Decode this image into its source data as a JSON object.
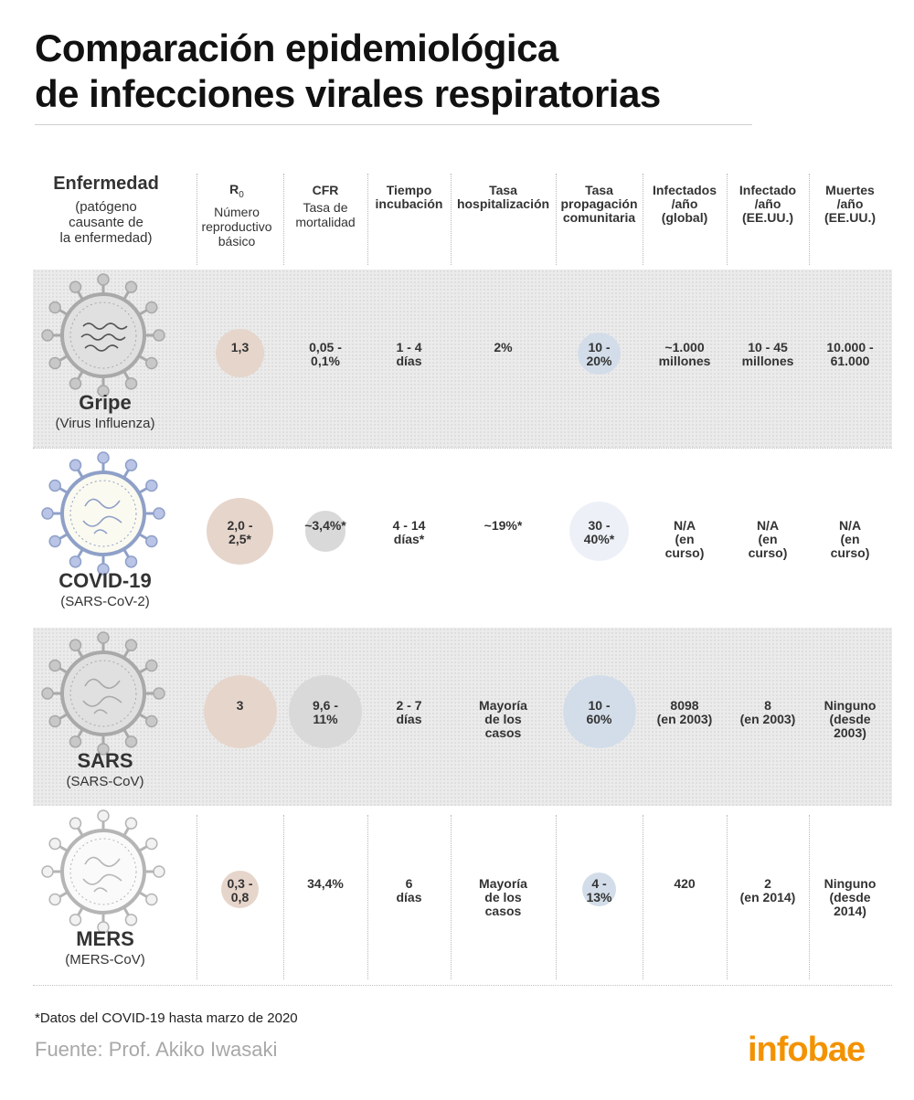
{
  "title_line1": "Comparación epidemiológica",
  "title_line2": "de infecciones virales respiratorias",
  "headers": {
    "disease": {
      "title": "Enfermedad",
      "subtitle": "(patógeno\ncausante de\nla enfermedad)"
    },
    "r0": {
      "title_main": "R",
      "title_sub": "0",
      "subtitle": "Número\nreproductivo\nbásico"
    },
    "cfr": {
      "title": "CFR",
      "subtitle": "Tasa de\nmortalidad"
    },
    "incubation": {
      "title": "Tiempo\nincubación"
    },
    "hospitalization": {
      "title": "Tasa\nhospitalización"
    },
    "spread": {
      "title": "Tasa\npropagación\ncomunitaria"
    },
    "infected_global": {
      "title": "Infectados\n/año\n(global)"
    },
    "infected_us": {
      "title": "Infectado\n/año\n(EE.UU.)"
    },
    "deaths_us": {
      "title": "Muertes\n/año\n(EE.UU.)"
    }
  },
  "chart_data": {
    "type": "table",
    "columns": [
      "Enfermedad",
      "R0",
      "CFR",
      "Tiempo incubación",
      "Tasa hospitalización",
      "Tasa propagación comunitaria",
      "Infectados /año (global)",
      "Infectado /año (EE.UU.)",
      "Muertes /año (EE.UU.)"
    ],
    "rows": [
      {
        "name": "Gripe",
        "pathogen": "(Virus Influenza)",
        "r0": "1,3",
        "cfr": "0,05 -\n0,1%",
        "incubation": "1 - 4\ndías",
        "hospitalization": "2%",
        "spread": "10 -\n20%",
        "infected_global": "~1.000\nmillones",
        "infected_us": "10 - 45\nmillones",
        "deaths_us": "10.000 -\n61.000",
        "r0_value": 1.3,
        "cfr_value_pct": 0.1,
        "spread_value_pct": 20
      },
      {
        "name": "COVID-19",
        "pathogen": "(SARS-CoV-2)",
        "r0": "2,0 -\n2,5*",
        "cfr": "~3,4%*",
        "incubation": "4 - 14\ndías*",
        "hospitalization": "~19%*",
        "spread": "30 -\n40%*",
        "infected_global": "N/A\n(en\ncurso)",
        "infected_us": "N/A\n(en\ncurso)",
        "deaths_us": "N/A\n(en\ncurso)",
        "r0_value": 2.5,
        "cfr_value_pct": 3.4,
        "spread_value_pct": 40
      },
      {
        "name": "SARS",
        "pathogen": "(SARS-CoV)",
        "r0": "3",
        "cfr": "9,6 -\n11%",
        "incubation": "2 - 7\ndías",
        "hospitalization": "Mayoría\nde los\ncasos",
        "spread": "10 -\n60%",
        "infected_global": "8098\n(en 2003)",
        "infected_us": "8\n(en 2003)",
        "deaths_us": "Ninguno\n(desde\n2003)",
        "r0_value": 3,
        "cfr_value_pct": 11,
        "spread_value_pct": 60
      },
      {
        "name": "MERS",
        "pathogen": "(MERS-CoV)",
        "r0": "0,3 -\n0,8",
        "cfr": "34,4%",
        "incubation": "6\ndías",
        "hospitalization": "Mayoría\nde los\ncasos",
        "spread": "4 -\n13%",
        "infected_global": "420",
        "infected_us": "2\n(en 2014)",
        "deaths_us": "Ninguno\n(desde\n2014)",
        "r0_value": 0.8,
        "cfr_value_pct": 34.4,
        "spread_value_pct": 13
      }
    ]
  },
  "footnote": "*Datos del COVID-19 hasta marzo de 2020",
  "source": "Fuente: Prof. Akiko Iwasaki",
  "logo": "infobae",
  "colors": {
    "accent": "#f39200",
    "r0_bubble": "#e6d5cb",
    "cfr_bubble": "#d9d9d9",
    "spread_bubble": "#d3dde9"
  }
}
